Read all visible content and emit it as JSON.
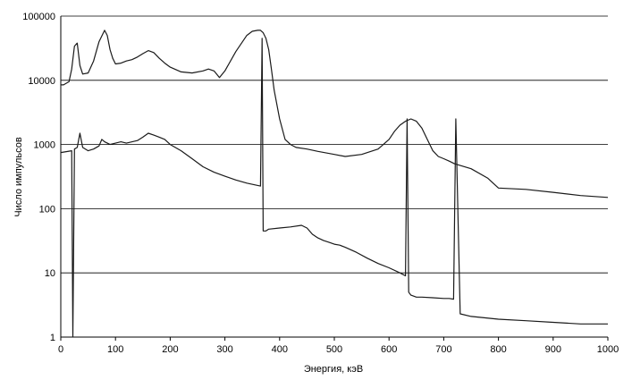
{
  "chart_data": {
    "type": "line",
    "xlabel": "Энергия, кэВ",
    "ylabel": "Число импульсов",
    "xlim": [
      0,
      1000
    ],
    "ylim": [
      1,
      100000
    ],
    "yscale": "log",
    "grid": "horizontal",
    "legend": "none",
    "x_ticks": [
      "0",
      "100",
      "200",
      "300",
      "400",
      "500",
      "600",
      "700",
      "800",
      "900",
      "1000"
    ],
    "y_ticks": [
      "1",
      "10",
      "100",
      "1000",
      "10000",
      "100000"
    ],
    "colors": {
      "series": "#1a1a1a",
      "grid": "#000000",
      "axis": "#000000"
    },
    "series": [
      {
        "x": [
          0,
          5,
          10,
          15,
          20,
          25,
          30,
          35,
          40,
          50,
          60,
          70,
          80,
          85,
          90,
          95,
          100,
          110,
          120,
          130,
          140,
          150,
          160,
          170,
          180,
          190,
          200,
          220,
          240,
          260,
          270,
          280,
          290,
          300,
          320,
          340,
          350,
          360,
          365,
          370,
          375,
          380,
          385,
          390,
          400,
          410,
          420,
          430,
          450,
          470,
          500,
          520,
          550,
          580,
          600,
          610,
          620,
          630,
          640,
          650,
          660,
          670,
          680,
          690,
          700,
          710,
          720,
          750,
          780,
          800,
          850,
          900,
          950,
          1000
        ],
        "y": [
          8500,
          8500,
          9000,
          9500,
          15000,
          34000,
          38000,
          17000,
          12500,
          13000,
          20000,
          40000,
          60000,
          50000,
          30000,
          22000,
          18000,
          18500,
          20000,
          21000,
          23000,
          26000,
          29000,
          27000,
          22000,
          18500,
          16000,
          13500,
          13000,
          14000,
          15000,
          14000,
          11000,
          14000,
          28000,
          50000,
          58000,
          60000,
          60000,
          55000,
          45000,
          30000,
          15000,
          7000,
          2500,
          1200,
          1000,
          900,
          850,
          780,
          700,
          650,
          700,
          850,
          1200,
          1600,
          2000,
          2300,
          2500,
          2300,
          1800,
          1200,
          800,
          650,
          600,
          550,
          500,
          420,
          300,
          210,
          200,
          180,
          160,
          150
        ]
      },
      {
        "x": [
          0,
          20,
          22,
          25,
          30,
          35,
          40,
          50,
          60,
          70,
          75,
          80,
          90,
          100,
          110,
          120,
          140,
          150,
          160,
          170,
          180,
          190,
          200,
          220,
          240,
          260,
          280,
          300,
          320,
          340,
          360,
          365,
          368,
          370,
          375,
          380,
          400,
          420,
          440,
          450,
          460,
          470,
          480,
          490,
          500,
          510,
          520,
          540,
          560,
          580,
          600,
          620,
          630,
          633,
          636,
          640,
          650,
          660,
          680,
          700,
          710,
          718,
          722,
          730,
          750,
          800,
          850,
          900,
          950,
          1000
        ],
        "y": [
          750,
          800,
          1,
          850,
          900,
          1500,
          900,
          800,
          850,
          950,
          1200,
          1100,
          1000,
          1050,
          1100,
          1050,
          1150,
          1300,
          1500,
          1400,
          1300,
          1200,
          1000,
          800,
          600,
          450,
          370,
          320,
          280,
          250,
          230,
          225,
          45000,
          45,
          45,
          48,
          50,
          52,
          55,
          50,
          40,
          35,
          32,
          30,
          28,
          27,
          25,
          21,
          17,
          14,
          12,
          10,
          9,
          2500,
          5,
          4.5,
          4.2,
          4.2,
          4.1,
          4.0,
          4.0,
          3.9,
          2500,
          2.3,
          2.1,
          1.9,
          1.8,
          1.7,
          1.6,
          1.6
        ]
      }
    ]
  }
}
